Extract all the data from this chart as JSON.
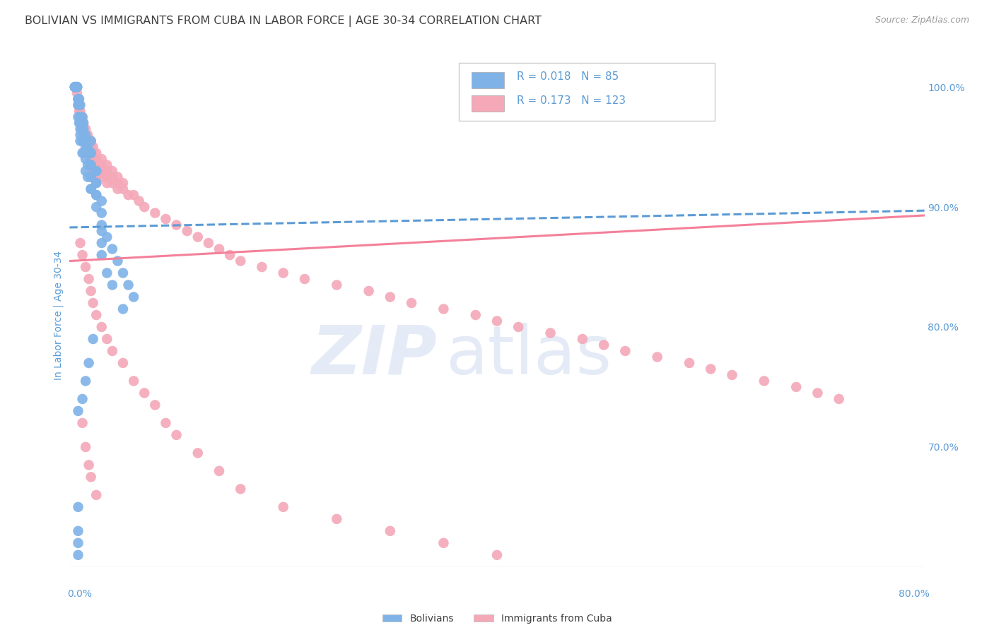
{
  "title": "BOLIVIAN VS IMMIGRANTS FROM CUBA IN LABOR FORCE | AGE 30-34 CORRELATION CHART",
  "source": "Source: ZipAtlas.com",
  "ylabel": "In Labor Force | Age 30-34",
  "legend_label1": "Bolivians",
  "legend_label2": "Immigrants from Cuba",
  "r1": "0.018",
  "n1": "85",
  "r2": "0.173",
  "n2": "123",
  "blue_color": "#7fb3e8",
  "pink_color": "#f4a8b8",
  "blue_line_color": "#5b9bd5",
  "pink_line_color": "#f48099",
  "title_color": "#404040",
  "axis_label_color": "#5b9bd5",
  "background_color": "#ffffff",
  "xmin": 0.0,
  "xmax": 0.8,
  "ymin": 0.6,
  "ymax": 1.02,
  "blue_scatter_x": [
    0.005,
    0.005,
    0.005,
    0.005,
    0.005,
    0.007,
    0.007,
    0.007,
    0.007,
    0.007,
    0.008,
    0.008,
    0.008,
    0.008,
    0.009,
    0.009,
    0.009,
    0.01,
    0.01,
    0.01,
    0.01,
    0.01,
    0.01,
    0.012,
    0.012,
    0.012,
    0.012,
    0.012,
    0.013,
    0.013,
    0.013,
    0.013,
    0.013,
    0.015,
    0.015,
    0.015,
    0.015,
    0.015,
    0.017,
    0.017,
    0.017,
    0.017,
    0.02,
    0.02,
    0.02,
    0.02,
    0.025,
    0.025,
    0.025,
    0.03,
    0.03,
    0.03,
    0.035,
    0.04,
    0.045,
    0.05,
    0.055,
    0.06,
    0.02,
    0.02,
    0.02,
    0.02,
    0.02,
    0.025,
    0.025,
    0.025,
    0.025,
    0.03,
    0.03,
    0.03,
    0.035,
    0.04,
    0.05,
    0.022,
    0.018,
    0.015,
    0.012,
    0.008,
    0.008,
    0.008,
    0.008,
    0.008
  ],
  "blue_scatter_y": [
    1.0,
    1.0,
    1.0,
    1.0,
    1.0,
    1.0,
    1.0,
    1.0,
    1.0,
    1.0,
    0.99,
    0.99,
    0.985,
    0.975,
    0.99,
    0.985,
    0.97,
    0.985,
    0.975,
    0.97,
    0.965,
    0.96,
    0.955,
    0.975,
    0.97,
    0.965,
    0.955,
    0.945,
    0.97,
    0.965,
    0.96,
    0.955,
    0.945,
    0.96,
    0.955,
    0.95,
    0.94,
    0.93,
    0.95,
    0.945,
    0.935,
    0.925,
    0.945,
    0.935,
    0.925,
    0.915,
    0.93,
    0.92,
    0.91,
    0.905,
    0.895,
    0.885,
    0.875,
    0.865,
    0.855,
    0.845,
    0.835,
    0.825,
    0.955,
    0.945,
    0.935,
    0.925,
    0.915,
    0.93,
    0.92,
    0.91,
    0.9,
    0.88,
    0.87,
    0.86,
    0.845,
    0.835,
    0.815,
    0.79,
    0.77,
    0.755,
    0.74,
    0.73,
    0.65,
    0.63,
    0.62,
    0.61
  ],
  "pink_scatter_x": [
    0.005,
    0.007,
    0.008,
    0.008,
    0.009,
    0.01,
    0.01,
    0.01,
    0.012,
    0.012,
    0.012,
    0.013,
    0.013,
    0.013,
    0.013,
    0.015,
    0.015,
    0.015,
    0.017,
    0.017,
    0.017,
    0.017,
    0.018,
    0.018,
    0.02,
    0.02,
    0.02,
    0.02,
    0.02,
    0.022,
    0.022,
    0.022,
    0.022,
    0.022,
    0.025,
    0.025,
    0.025,
    0.025,
    0.025,
    0.03,
    0.03,
    0.03,
    0.03,
    0.035,
    0.035,
    0.035,
    0.035,
    0.04,
    0.04,
    0.04,
    0.045,
    0.045,
    0.045,
    0.05,
    0.05,
    0.055,
    0.06,
    0.065,
    0.07,
    0.08,
    0.09,
    0.1,
    0.11,
    0.12,
    0.13,
    0.14,
    0.15,
    0.16,
    0.18,
    0.2,
    0.22,
    0.25,
    0.28,
    0.3,
    0.32,
    0.35,
    0.38,
    0.4,
    0.42,
    0.45,
    0.48,
    0.5,
    0.52,
    0.55,
    0.58,
    0.6,
    0.62,
    0.65,
    0.68,
    0.7,
    0.72,
    0.01,
    0.012,
    0.015,
    0.018,
    0.02,
    0.022,
    0.025,
    0.03,
    0.035,
    0.04,
    0.05,
    0.06,
    0.07,
    0.08,
    0.09,
    0.1,
    0.12,
    0.14,
    0.16,
    0.2,
    0.25,
    0.3,
    0.35,
    0.4,
    0.012,
    0.015,
    0.018,
    0.02,
    0.025
  ],
  "pink_scatter_y": [
    1.0,
    0.995,
    0.99,
    0.985,
    0.98,
    0.98,
    0.975,
    0.97,
    0.975,
    0.97,
    0.965,
    0.97,
    0.965,
    0.96,
    0.955,
    0.965,
    0.96,
    0.955,
    0.96,
    0.955,
    0.95,
    0.945,
    0.955,
    0.945,
    0.955,
    0.95,
    0.945,
    0.94,
    0.935,
    0.95,
    0.945,
    0.94,
    0.935,
    0.93,
    0.945,
    0.94,
    0.935,
    0.93,
    0.925,
    0.94,
    0.935,
    0.93,
    0.925,
    0.935,
    0.93,
    0.925,
    0.92,
    0.93,
    0.925,
    0.92,
    0.925,
    0.92,
    0.915,
    0.92,
    0.915,
    0.91,
    0.91,
    0.905,
    0.9,
    0.895,
    0.89,
    0.885,
    0.88,
    0.875,
    0.87,
    0.865,
    0.86,
    0.855,
    0.85,
    0.845,
    0.84,
    0.835,
    0.83,
    0.825,
    0.82,
    0.815,
    0.81,
    0.805,
    0.8,
    0.795,
    0.79,
    0.785,
    0.78,
    0.775,
    0.77,
    0.765,
    0.76,
    0.755,
    0.75,
    0.745,
    0.74,
    0.87,
    0.86,
    0.85,
    0.84,
    0.83,
    0.82,
    0.81,
    0.8,
    0.79,
    0.78,
    0.77,
    0.755,
    0.745,
    0.735,
    0.72,
    0.71,
    0.695,
    0.68,
    0.665,
    0.65,
    0.64,
    0.63,
    0.62,
    0.61,
    0.72,
    0.7,
    0.685,
    0.675,
    0.66
  ],
  "blue_trend_x": [
    0.0,
    0.8
  ],
  "blue_trend_y": [
    0.883,
    0.897
  ],
  "pink_trend_x": [
    0.0,
    0.8
  ],
  "pink_trend_y": [
    0.855,
    0.893
  ]
}
